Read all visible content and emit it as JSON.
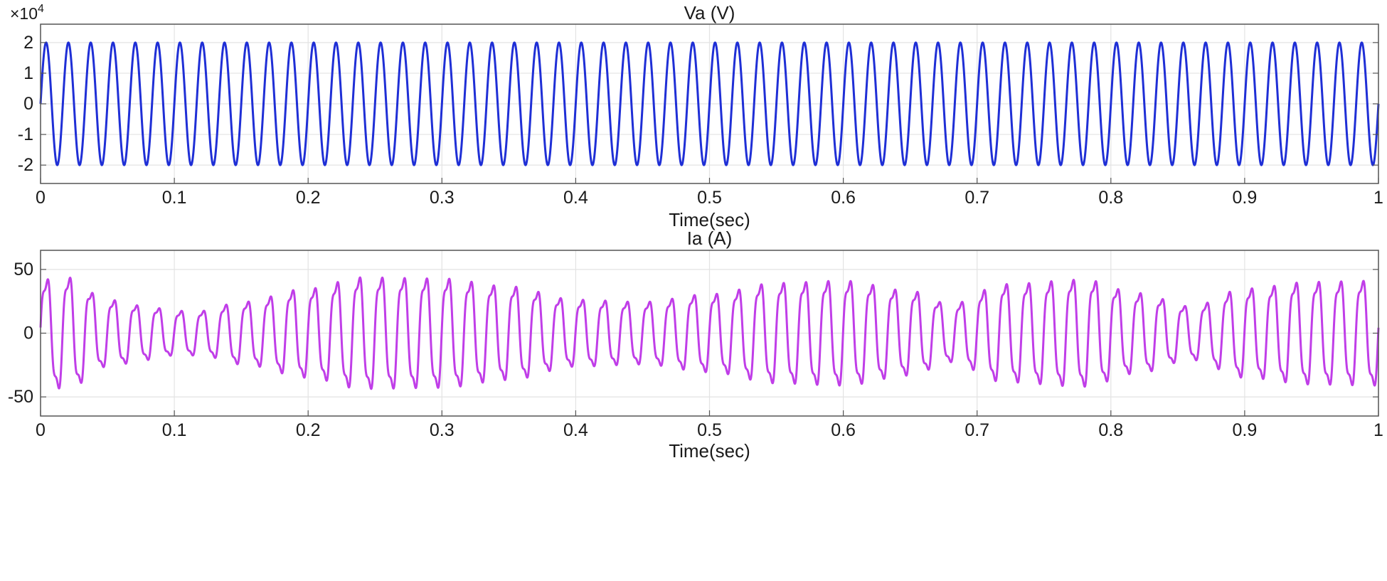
{
  "chart_data": [
    {
      "type": "line",
      "title": "Va (V)",
      "xlabel": "Time(sec)",
      "ylabel": "",
      "xlim": [
        0,
        1
      ],
      "ylim": [
        -2.6,
        2.6
      ],
      "y_scale_label": "×10",
      "y_scale_exponent": "4",
      "x_ticks": [
        "0",
        "0.1",
        "0.2",
        "0.3",
        "0.4",
        "0.5",
        "0.6",
        "0.7",
        "0.8",
        "0.9",
        "1"
      ],
      "x_tick_values": [
        0,
        0.1,
        0.2,
        0.3,
        0.4,
        0.5,
        0.6,
        0.7,
        0.8,
        0.9,
        1
      ],
      "y_ticks": [
        "2",
        "1",
        "0",
        "-1",
        "-2"
      ],
      "y_tick_values": [
        2,
        1,
        0,
        -1,
        -2
      ],
      "grid": true,
      "series": [
        {
          "color": "#1f2fd6",
          "waveform": "sine",
          "frequency_hz": 60,
          "amplitude": 2.0,
          "phase_deg": 0
        }
      ]
    },
    {
      "type": "line",
      "title": "Ia (A)",
      "xlabel": "Time(sec)",
      "ylabel": "",
      "xlim": [
        0,
        1
      ],
      "ylim": [
        -65,
        65
      ],
      "x_ticks": [
        "0",
        "0.1",
        "0.2",
        "0.3",
        "0.4",
        "0.5",
        "0.6",
        "0.7",
        "0.8",
        "0.9",
        "1"
      ],
      "x_tick_values": [
        0,
        0.1,
        0.2,
        0.3,
        0.4,
        0.5,
        0.6,
        0.7,
        0.8,
        0.9,
        1
      ],
      "y_ticks": [
        "50",
        "0",
        "-50"
      ],
      "y_tick_values": [
        50,
        0,
        -50
      ],
      "grid": true,
      "series": [
        {
          "color": "#c03ee8",
          "waveform": "modulated-sine-with-harmonics",
          "frequency_hz": 60,
          "envelope_t": [
            0,
            0.02,
            0.05,
            0.08,
            0.1,
            0.12,
            0.15,
            0.2,
            0.24,
            0.3,
            0.35,
            0.4,
            0.45,
            0.5,
            0.55,
            0.6,
            0.65,
            0.68,
            0.72,
            0.78,
            0.82,
            0.86,
            0.9,
            0.95,
            1
          ],
          "envelope_amp": [
            48,
            50,
            30,
            24,
            20,
            20,
            28,
            40,
            50,
            49,
            42,
            30,
            28,
            35,
            45,
            47,
            38,
            26,
            44,
            48,
            36,
            24,
            40,
            46,
            47
          ],
          "harmonic_ratio": 0.18
        }
      ]
    }
  ]
}
